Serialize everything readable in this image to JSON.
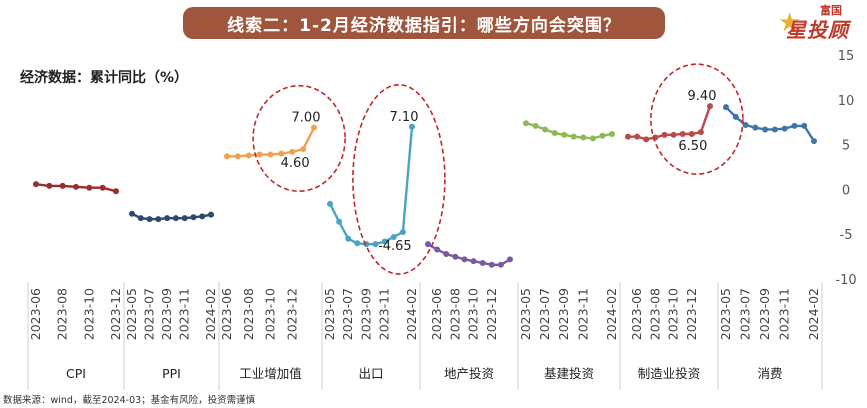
{
  "header": {
    "title": "线索二：1-2月经济数据指引：哪些方向会突围？",
    "logo_top": "富国",
    "logo_main": "星投顾"
  },
  "subtitle": "经济数据：累计同比（%）",
  "footer": "数据来源：wind，截至2024-03；基金有风险，投资需谨慎",
  "chart_data": {
    "type": "line",
    "ylim": [
      -10,
      15
    ],
    "yticks": [
      -10,
      -5,
      0,
      5,
      10,
      15
    ],
    "grid": false,
    "series": [
      {
        "name": "CPI",
        "color": "#9b2c2c",
        "x": [
          "2023-06",
          "2023-07",
          "2023-08",
          "2023-09",
          "2023-10",
          "2023-11",
          "2023-12"
        ],
        "values": [
          0.7,
          0.5,
          0.5,
          0.4,
          0.3,
          0.3,
          -0.1
        ]
      },
      {
        "name": "PPI",
        "color": "#2c4a6b",
        "x": [
          "2023-05",
          "2023-06",
          "2023-07",
          "2023-08",
          "2023-09",
          "2023-10",
          "2023-11",
          "2023-12",
          "2024-01",
          "2024-02"
        ],
        "values": [
          -2.6,
          -3.1,
          -3.2,
          -3.2,
          -3.1,
          -3.1,
          -3.1,
          -3.0,
          -2.9,
          -2.7
        ]
      },
      {
        "name": "工业增加值",
        "color": "#f0a050",
        "x": [
          "2023-06",
          "2023-07",
          "2023-08",
          "2023-09",
          "2023-10",
          "2023-11",
          "2023-12",
          "2024-01",
          "2024-02"
        ],
        "values": [
          3.8,
          3.8,
          3.9,
          4.0,
          4.0,
          4.1,
          4.3,
          4.6,
          7.0
        ]
      },
      {
        "name": "出口",
        "color": "#4ba3c3",
        "x": [
          "2023-05",
          "2023-06",
          "2023-07",
          "2023-08",
          "2023-09",
          "2023-10",
          "2023-11",
          "2023-12",
          "2024-01",
          "2024-02"
        ],
        "values": [
          -1.5,
          -3.5,
          -5.4,
          -5.9,
          -6.0,
          -6.0,
          -5.7,
          -5.2,
          -4.65,
          7.1
        ]
      },
      {
        "name": "地产投资",
        "color": "#7a5aa0",
        "x": [
          "2023-05",
          "2023-06",
          "2023-07",
          "2023-08",
          "2023-09",
          "2023-10",
          "2023-11",
          "2023-12",
          "2024-01",
          "2024-02"
        ],
        "values": [
          -6.0,
          -6.6,
          -7.1,
          -7.4,
          -7.7,
          -7.9,
          -8.1,
          -8.3,
          -8.3,
          -7.7
        ]
      },
      {
        "name": "基建投资",
        "color": "#8fb856",
        "x": [
          "2023-05",
          "2023-06",
          "2023-07",
          "2023-08",
          "2023-09",
          "2023-10",
          "2023-11",
          "2023-12",
          "2024-01",
          "2024-02"
        ],
        "values": [
          7.5,
          7.2,
          6.8,
          6.4,
          6.2,
          6.0,
          5.9,
          5.8,
          6.1,
          6.3
        ]
      },
      {
        "name": "制造业投资",
        "color": "#b84a4a",
        "x": [
          "2023-05",
          "2023-06",
          "2023-07",
          "2023-08",
          "2023-09",
          "2023-10",
          "2023-11",
          "2023-12",
          "2024-01",
          "2024-02"
        ],
        "values": [
          6.0,
          6.0,
          5.7,
          5.9,
          6.2,
          6.2,
          6.3,
          6.3,
          6.5,
          9.4
        ]
      },
      {
        "name": "消费",
        "color": "#3f75a8",
        "x": [
          "2023-05",
          "2023-06",
          "2023-07",
          "2023-08",
          "2023-09",
          "2023-10",
          "2023-11",
          "2023-12",
          "2024-01",
          "2024-02"
        ],
        "values": [
          9.3,
          8.2,
          7.3,
          7.0,
          6.8,
          6.8,
          6.9,
          7.2,
          7.2,
          5.5
        ]
      }
    ],
    "x_tick_labels": [
      [
        "2023-06",
        "2023-08",
        "2023-10",
        "2023-12"
      ],
      [
        "2023-05",
        "2023-07",
        "2023-09",
        "2023-11",
        "2024-02"
      ],
      [
        "2023-06",
        "2023-08",
        "2023-10",
        "2023-12"
      ],
      [
        "2023-05",
        "2023-07",
        "2023-09",
        "2023-11",
        "2024-02"
      ],
      [
        "2023-06",
        "2023-08",
        "2023-10",
        "2023-12"
      ],
      [
        "2023-05",
        "2023-07",
        "2023-09",
        "2023-11",
        "2024-02"
      ],
      [
        "2023-06",
        "2023-08",
        "2023-10",
        "2023-12"
      ],
      [
        "2023-05",
        "2023-07",
        "2023-09",
        "2023-11",
        "2024-02"
      ]
    ],
    "annotations": [
      {
        "series": 2,
        "text": "7.00",
        "point": 8,
        "circled": true
      },
      {
        "series": 2,
        "text": "4.60",
        "point": 7,
        "circled": true
      },
      {
        "series": 3,
        "text": "7.10",
        "point": 9,
        "circled": true
      },
      {
        "series": 3,
        "text": "-4.65",
        "point": 8,
        "circled": true
      },
      {
        "series": 6,
        "text": "9.40",
        "point": 9,
        "circled": true
      },
      {
        "series": 6,
        "text": "6.50",
        "point": 8,
        "circled": true
      }
    ]
  }
}
